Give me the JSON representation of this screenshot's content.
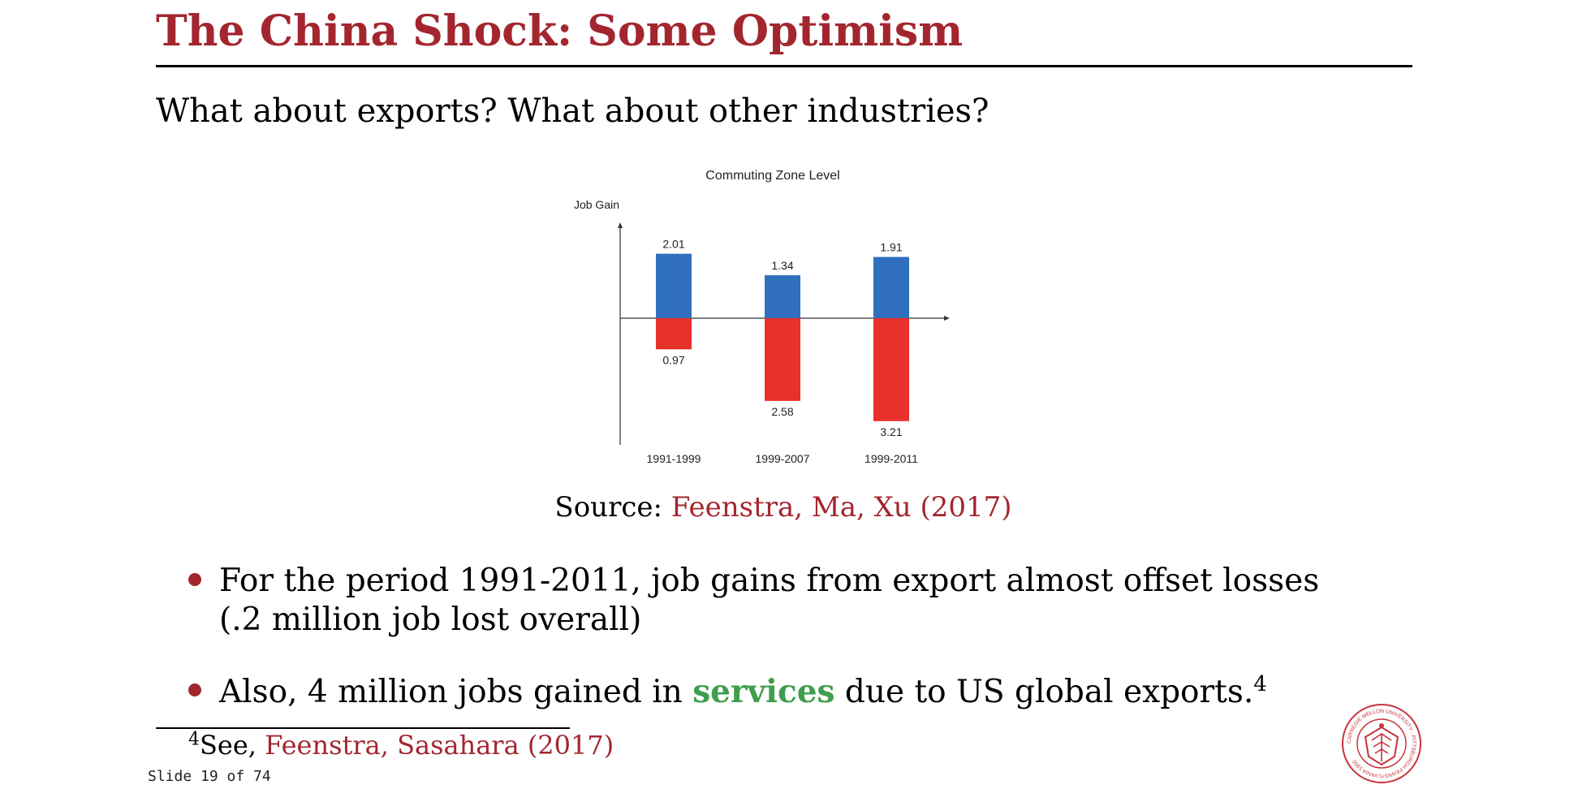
{
  "slide": {
    "title": "The China Shock: Some Optimism",
    "subtitle": "What about exports? What about other industries?",
    "source_label": "Source:",
    "source_link": "Feenstra, Ma, Xu (2017)",
    "bullets": [
      {
        "text": "For the period 1991-2011, job gains from export almost offset losses (.2 million job lost overall)"
      },
      {
        "pre": "Also, 4 million jobs gained in",
        "highlight": "services",
        "post": "due to US global exports.",
        "sup": "4"
      }
    ],
    "footnote": {
      "sup": "4",
      "pre": "See,",
      "link": "Feenstra, Sasahara (2017)"
    },
    "slide_number": "Slide 19 of 74",
    "logo_text": "CARNEGIE MELLON UNIVERSITY · PITTSBURGH PENNSYLVANIA 1900"
  },
  "colors": {
    "accent": "#a3262f",
    "services": "#3f9e4d",
    "gain": "#2f6fbd",
    "loss": "#e8312a"
  },
  "chart_data": {
    "type": "bar",
    "title": "Commuting Zone Level",
    "ylabel": "Job Gain",
    "xlabel": "",
    "categories": [
      "1991-1999",
      "1999-2007",
      "1999-2011"
    ],
    "series": [
      {
        "values": [
          2.01,
          1.34,
          1.91
        ],
        "labels": [
          "2.01",
          "1.34",
          "1.91"
        ],
        "color": "#2f6fbd"
      },
      {
        "values": [
          -0.97,
          -2.58,
          -3.21
        ],
        "labels": [
          "0.97",
          "2.58",
          "3.21"
        ],
        "color": "#e8312a"
      }
    ],
    "ylim": [
      -4.0,
      3.0
    ],
    "grid": false,
    "legend": "none"
  }
}
